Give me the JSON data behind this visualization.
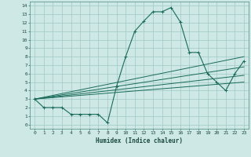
{
  "xlabel": "Humidex (Indice chaleur)",
  "background_color": "#cde8e5",
  "grid_color": "#a0c8c4",
  "line_color": "#1a6b5a",
  "xlim": [
    -0.5,
    23.5
  ],
  "ylim": [
    -0.5,
    14.5
  ],
  "xticks": [
    0,
    1,
    2,
    3,
    4,
    5,
    6,
    7,
    8,
    9,
    10,
    11,
    12,
    13,
    14,
    15,
    16,
    17,
    18,
    19,
    20,
    21,
    22,
    23
  ],
  "yticks": [
    0,
    1,
    2,
    3,
    4,
    5,
    6,
    7,
    8,
    9,
    10,
    11,
    12,
    13,
    14
  ],
  "main_line_x": [
    0,
    1,
    2,
    3,
    4,
    5,
    6,
    7,
    8,
    9,
    10,
    11,
    12,
    13,
    14,
    15,
    16,
    17,
    18,
    19,
    20,
    21,
    22,
    23
  ],
  "main_line_y": [
    3.0,
    2.0,
    2.0,
    2.0,
    1.2,
    1.2,
    1.2,
    1.2,
    0.2,
    4.5,
    8.0,
    11.0,
    12.2,
    13.3,
    13.3,
    13.8,
    12.1,
    8.5,
    8.5,
    6.0,
    5.0,
    4.0,
    6.0,
    7.5
  ],
  "ref_lines": [
    {
      "x": [
        0,
        23
      ],
      "y": [
        3.0,
        8.0
      ]
    },
    {
      "x": [
        0,
        23
      ],
      "y": [
        3.0,
        6.8
      ]
    },
    {
      "x": [
        0,
        23
      ],
      "y": [
        3.0,
        5.8
      ]
    },
    {
      "x": [
        0,
        23
      ],
      "y": [
        3.0,
        5.0
      ]
    }
  ]
}
